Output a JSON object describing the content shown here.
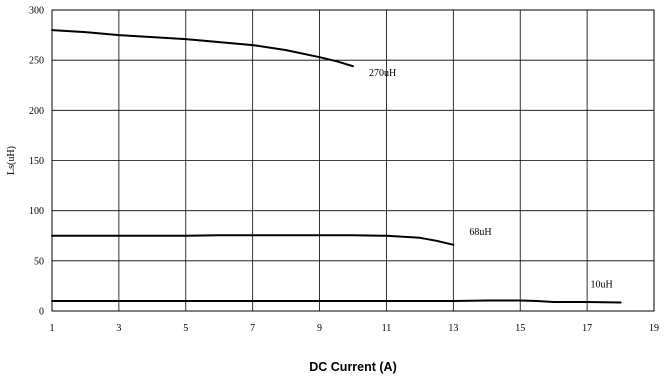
{
  "chart_data": {
    "type": "line",
    "title": "",
    "xlabel": "DC Current (A)",
    "ylabel": "Ls(uH)",
    "xlim": [
      1,
      19
    ],
    "ylim": [
      0,
      300
    ],
    "xticks": [
      1,
      3,
      5,
      7,
      9,
      11,
      13,
      15,
      17,
      19
    ],
    "yticks": [
      0,
      50,
      100,
      150,
      200,
      250,
      300
    ],
    "grid": true,
    "legend": "none",
    "line_color": "#000000",
    "series": [
      {
        "name": "270uH",
        "x": [
          1,
          2,
          3,
          4,
          5,
          6,
          7,
          8,
          9,
          9.5,
          10
        ],
        "y": [
          280,
          278,
          275,
          273,
          271,
          268,
          265,
          260,
          253,
          249,
          244
        ]
      },
      {
        "name": "68uH",
        "x": [
          1,
          3,
          5,
          6,
          7,
          8,
          9,
          10,
          11,
          11.5,
          12,
          12.5,
          13
        ],
        "y": [
          75,
          75,
          75,
          75.5,
          75.5,
          75.5,
          75.5,
          75.5,
          75,
          74,
          73,
          70,
          66
        ]
      },
      {
        "name": "10uH",
        "x": [
          1,
          3,
          5,
          7,
          9,
          11,
          13,
          14,
          15,
          15.5,
          16,
          17,
          18
        ],
        "y": [
          10,
          10,
          10,
          10,
          10,
          10,
          10,
          10.5,
          10.5,
          10,
          9,
          9,
          8.5
        ]
      }
    ]
  }
}
